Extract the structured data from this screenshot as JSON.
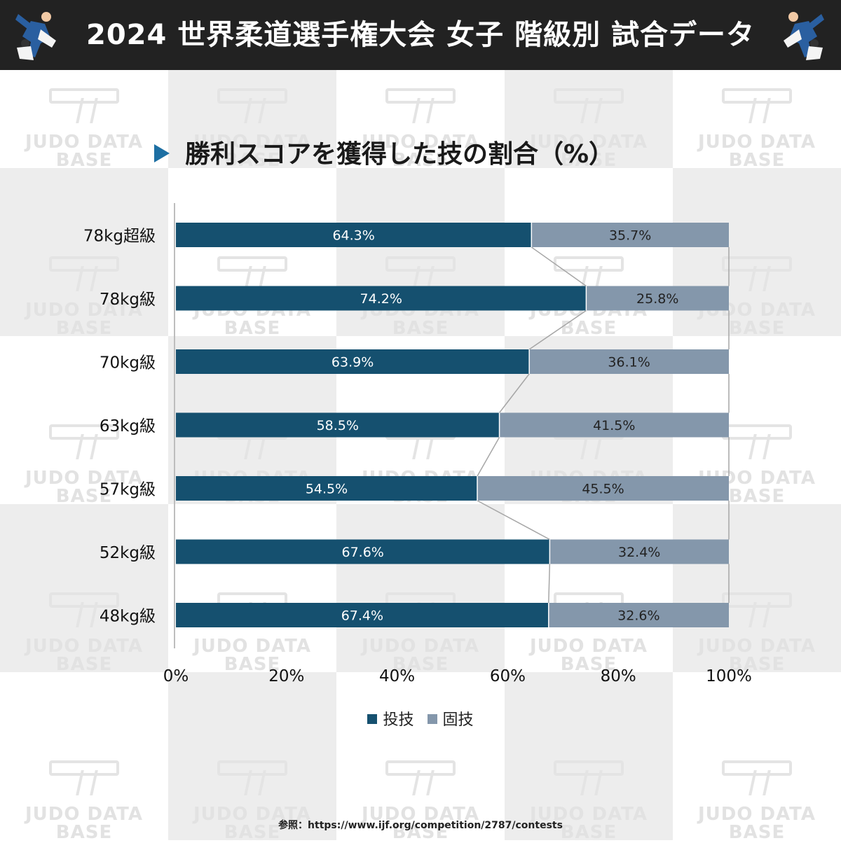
{
  "header": {
    "title": "2024 世界柔道選手権大会 女子 階級別 試合データ"
  },
  "subtitle": "勝利スコアを獲得した技の割合（%）",
  "watermark": {
    "line1": "JUDO DATA",
    "line2": "BASE"
  },
  "colors": {
    "throw": "#15506f",
    "hold": "#8497ab",
    "header_bg": "#222222",
    "accent": "#1d6fa3"
  },
  "source": "参照：https://www.ijf.org/competition/2787/contests",
  "chart_data": {
    "type": "bar",
    "orientation": "horizontal",
    "stacked": "percent",
    "title": "勝利スコアを獲得した技の割合（%）",
    "categories": [
      "78kg超級",
      "78kg級",
      "70kg級",
      "63kg級",
      "57kg級",
      "52kg級",
      "48kg級"
    ],
    "series": [
      {
        "name": "投技",
        "values": [
          64.3,
          74.2,
          63.9,
          58.5,
          54.5,
          67.6,
          67.4
        ]
      },
      {
        "name": "固技",
        "values": [
          35.7,
          25.8,
          36.1,
          41.5,
          45.5,
          32.4,
          32.6
        ]
      }
    ],
    "value_labels": {
      "投技": [
        "64.3%",
        "74.2%",
        "63.9%",
        "58.5%",
        "54.5%",
        "67.6%",
        "67.4%"
      ],
      "固技": [
        "35.7%",
        "25.8%",
        "36.1%",
        "41.5%",
        "45.5%",
        "32.4%",
        "32.6%"
      ]
    },
    "x_ticks": [
      "0%",
      "20%",
      "40%",
      "60%",
      "80%",
      "100%"
    ],
    "xlim": [
      0,
      100
    ],
    "series_lines": true,
    "legend": "bottom",
    "grid": false
  }
}
